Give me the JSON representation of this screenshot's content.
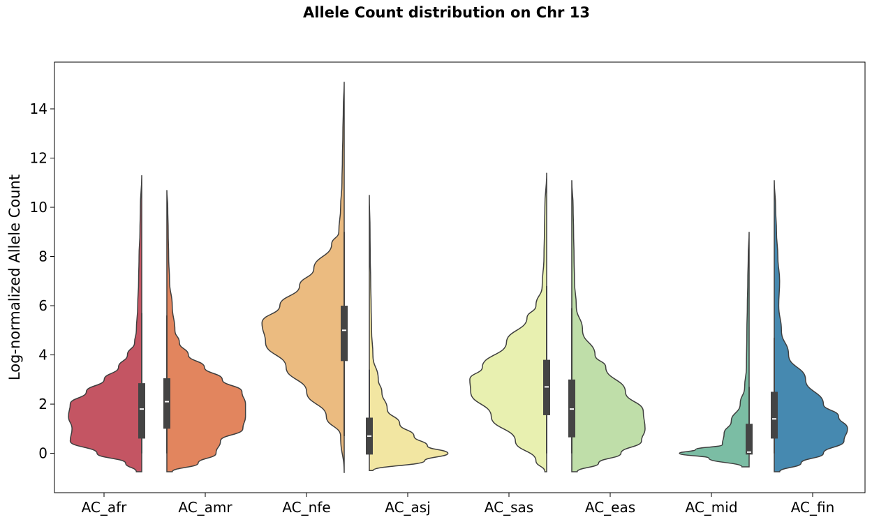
{
  "chart_data": {
    "type": "violin",
    "title": "Allele Count distribution on Chr 13",
    "xlabel": "",
    "ylabel": "Log-normalized Allele Count",
    "ylim": [
      -1.6,
      15.9
    ],
    "yticks": [
      0,
      2,
      4,
      6,
      8,
      10,
      12,
      14
    ],
    "grid": false,
    "split": true,
    "categories": [
      "AC_afr",
      "AC_amr",
      "AC_nfe",
      "AC_asj",
      "AC_sas",
      "AC_eas",
      "AC_mid",
      "AC_fin"
    ],
    "series": [
      {
        "category": "AC_afr",
        "side": "left",
        "color": "#c45563",
        "min": -0.75,
        "max": 11.3,
        "q1": 0.6,
        "median": 1.8,
        "q3": 2.85,
        "whisker_low": 0,
        "whisker_high": 5.7,
        "profile": [
          [
            -0.75,
            0.06
          ],
          [
            -0.4,
            0.18
          ],
          [
            0,
            0.5
          ],
          [
            0.5,
            0.8
          ],
          [
            1.0,
            0.78
          ],
          [
            1.5,
            0.82
          ],
          [
            2.0,
            0.8
          ],
          [
            2.5,
            0.62
          ],
          [
            3.0,
            0.42
          ],
          [
            3.5,
            0.26
          ],
          [
            4.0,
            0.16
          ],
          [
            4.5,
            0.08
          ],
          [
            5.0,
            0.06
          ],
          [
            6.0,
            0.045
          ],
          [
            7.0,
            0.035
          ],
          [
            8.0,
            0.03
          ],
          [
            9.0,
            0.02
          ],
          [
            10.0,
            0.015
          ],
          [
            11.3,
            0.0
          ]
        ]
      },
      {
        "category": "AC_amr",
        "side": "right",
        "color": "#e2855e",
        "min": -0.75,
        "max": 10.7,
        "q1": 1.0,
        "median": 2.1,
        "q3": 3.05,
        "whisker_low": 0,
        "whisker_high": 5.6,
        "profile": [
          [
            -0.75,
            0.06
          ],
          [
            -0.4,
            0.35
          ],
          [
            0,
            0.55
          ],
          [
            0.5,
            0.6
          ],
          [
            1.0,
            0.85
          ],
          [
            1.5,
            0.88
          ],
          [
            2.0,
            0.88
          ],
          [
            2.5,
            0.84
          ],
          [
            3.0,
            0.62
          ],
          [
            3.5,
            0.42
          ],
          [
            4.0,
            0.24
          ],
          [
            4.5,
            0.14
          ],
          [
            5.0,
            0.09
          ],
          [
            6.0,
            0.06
          ],
          [
            7.0,
            0.03
          ],
          [
            8.0,
            0.02
          ],
          [
            9.0,
            0.015
          ],
          [
            10.0,
            0.01
          ],
          [
            10.7,
            0.0
          ]
        ]
      },
      {
        "category": "AC_nfe",
        "side": "left",
        "color": "#ebbb80",
        "min": -0.8,
        "max": 15.1,
        "q1": 3.75,
        "median": 5.0,
        "q3": 6.0,
        "whisker_low": 0.7,
        "whisker_high": 9.0,
        "profile": [
          [
            -0.8,
            0.0
          ],
          [
            0.7,
            0.04
          ],
          [
            1.5,
            0.2
          ],
          [
            2.5,
            0.42
          ],
          [
            3.5,
            0.65
          ],
          [
            4.5,
            0.88
          ],
          [
            5.3,
            0.92
          ],
          [
            6.0,
            0.72
          ],
          [
            6.8,
            0.5
          ],
          [
            7.5,
            0.34
          ],
          [
            8.5,
            0.14
          ],
          [
            9.0,
            0.06
          ],
          [
            10,
            0.04
          ],
          [
            11,
            0.025
          ],
          [
            12,
            0.02
          ],
          [
            13,
            0.015
          ],
          [
            14,
            0.01
          ],
          [
            15.1,
            0.0
          ]
        ]
      },
      {
        "category": "AC_asj",
        "side": "right",
        "color": "#f2e6a2",
        "min": -0.7,
        "max": 10.5,
        "q1": -0.05,
        "median": 0.7,
        "q3": 1.45,
        "whisker_low": -0.05,
        "whisker_high": 3.4,
        "profile": [
          [
            -0.7,
            0.04
          ],
          [
            -0.3,
            0.62
          ],
          [
            0,
            0.88
          ],
          [
            0.3,
            0.65
          ],
          [
            0.7,
            0.5
          ],
          [
            1.2,
            0.34
          ],
          [
            1.8,
            0.2
          ],
          [
            2.5,
            0.14
          ],
          [
            3.0,
            0.1
          ],
          [
            4.0,
            0.04
          ],
          [
            5.0,
            0.025
          ],
          [
            6.0,
            0.02
          ],
          [
            7.0,
            0.015
          ],
          [
            8.0,
            0.01
          ],
          [
            9.0,
            0.008
          ],
          [
            10.5,
            0.0
          ]
        ]
      },
      {
        "category": "AC_sas",
        "side": "left",
        "color": "#e8f0b0",
        "min": -0.75,
        "max": 11.4,
        "q1": 1.55,
        "median": 2.7,
        "q3": 3.8,
        "whisker_low": 0,
        "whisker_high": 6.8,
        "profile": [
          [
            -0.75,
            0.02
          ],
          [
            -0.3,
            0.12
          ],
          [
            0.5,
            0.35
          ],
          [
            1.5,
            0.62
          ],
          [
            2.5,
            0.85
          ],
          [
            3.0,
            0.86
          ],
          [
            3.5,
            0.72
          ],
          [
            4.5,
            0.45
          ],
          [
            5.5,
            0.22
          ],
          [
            6.0,
            0.12
          ],
          [
            6.8,
            0.05
          ],
          [
            8.0,
            0.03
          ],
          [
            9.0,
            0.025
          ],
          [
            10.0,
            0.02
          ],
          [
            11.4,
            0.0
          ]
        ]
      },
      {
        "category": "AC_eas",
        "side": "right",
        "color": "#bfdea9",
        "min": -0.75,
        "max": 11.1,
        "q1": 0.65,
        "median": 1.8,
        "q3": 3.0,
        "whisker_low": 0,
        "whisker_high": 5.9,
        "profile": [
          [
            -0.75,
            0.06
          ],
          [
            -0.4,
            0.3
          ],
          [
            0,
            0.55
          ],
          [
            0.5,
            0.78
          ],
          [
            1.0,
            0.82
          ],
          [
            1.7,
            0.8
          ],
          [
            2.5,
            0.6
          ],
          [
            3.5,
            0.38
          ],
          [
            4.0,
            0.26
          ],
          [
            5.0,
            0.12
          ],
          [
            6.0,
            0.05
          ],
          [
            7.0,
            0.03
          ],
          [
            8.0,
            0.025
          ],
          [
            9.0,
            0.02
          ],
          [
            10.0,
            0.015
          ],
          [
            11.1,
            0.0
          ]
        ]
      },
      {
        "category": "AC_mid",
        "side": "left",
        "color": "#7bbda4",
        "min": -0.55,
        "max": 9.0,
        "q1": -0.05,
        "median": 0.05,
        "q3": 1.2,
        "whisker_low": -0.05,
        "whisker_high": 2.7,
        "profile": [
          [
            -0.55,
            0.08
          ],
          [
            -0.2,
            0.45
          ],
          [
            0,
            0.78
          ],
          [
            0.15,
            0.6
          ],
          [
            0.35,
            0.3
          ],
          [
            0.8,
            0.28
          ],
          [
            1.3,
            0.2
          ],
          [
            2.0,
            0.1
          ],
          [
            2.7,
            0.05
          ],
          [
            3.5,
            0.03
          ],
          [
            5.0,
            0.025
          ],
          [
            6.0,
            0.02
          ],
          [
            7.0,
            0.015
          ],
          [
            8.0,
            0.01
          ],
          [
            9.0,
            0.0
          ]
        ]
      },
      {
        "category": "AC_fin",
        "side": "right",
        "color": "#4689b0",
        "min": -0.75,
        "max": 11.1,
        "q1": 0.6,
        "median": 1.4,
        "q3": 2.5,
        "whisker_low": 0,
        "whisker_high": 4.7,
        "profile": [
          [
            -0.75,
            0.06
          ],
          [
            -0.4,
            0.3
          ],
          [
            0,
            0.55
          ],
          [
            0.5,
            0.78
          ],
          [
            1.0,
            0.82
          ],
          [
            1.5,
            0.72
          ],
          [
            2.0,
            0.55
          ],
          [
            3.0,
            0.35
          ],
          [
            4.0,
            0.16
          ],
          [
            5.0,
            0.08
          ],
          [
            6.0,
            0.05
          ],
          [
            7.0,
            0.06
          ],
          [
            8.0,
            0.04
          ],
          [
            9.0,
            0.025
          ],
          [
            10.0,
            0.015
          ],
          [
            11.1,
            0.0
          ]
        ]
      }
    ]
  }
}
